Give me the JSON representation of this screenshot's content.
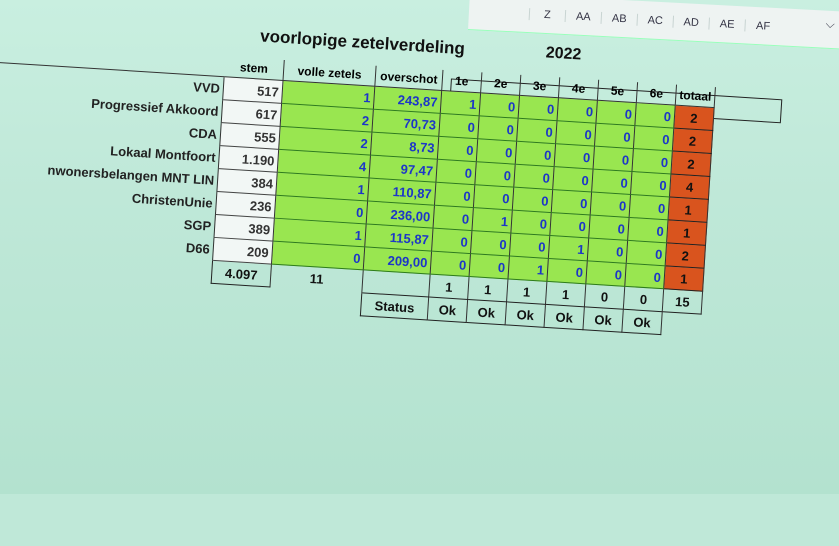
{
  "columns": [
    "Z",
    "AA",
    "AB",
    "AC",
    "AD",
    "AE",
    "AF"
  ],
  "title": "voorlopige zetelverdeling",
  "year": "2022",
  "headers": {
    "stem": "stem",
    "volle_zetels": "volle zetels",
    "overschot": "overschot",
    "rounds": [
      "1e",
      "2e",
      "3e",
      "4e",
      "5e",
      "6e"
    ],
    "totaal": "totaal"
  },
  "rows": [
    {
      "party": "VVD",
      "stem": "517",
      "volle": "1",
      "over": "243,87",
      "r": [
        "1",
        "0",
        "0",
        "0",
        "0",
        "0"
      ],
      "tot": "2"
    },
    {
      "party": "Progressief Akkoord",
      "stem": "617",
      "volle": "2",
      "over": "70,73",
      "r": [
        "0",
        "0",
        "0",
        "0",
        "0",
        "0"
      ],
      "tot": "2"
    },
    {
      "party": "CDA",
      "stem": "555",
      "volle": "2",
      "over": "8,73",
      "r": [
        "0",
        "0",
        "0",
        "0",
        "0",
        "0"
      ],
      "tot": "2"
    },
    {
      "party": "Lokaal Montfoort",
      "stem": "1.190",
      "volle": "4",
      "over": "97,47",
      "r": [
        "0",
        "0",
        "0",
        "0",
        "0",
        "0"
      ],
      "tot": "4"
    },
    {
      "party": "nwonersbelangen MNT LIN",
      "stem": "384",
      "volle": "1",
      "over": "110,87",
      "r": [
        "0",
        "0",
        "0",
        "0",
        "0",
        "0"
      ],
      "tot": "1"
    },
    {
      "party": "ChristenUnie",
      "stem": "236",
      "volle": "0",
      "over": "236,00",
      "r": [
        "0",
        "1",
        "0",
        "0",
        "0",
        "0"
      ],
      "tot": "1"
    },
    {
      "party": "SGP",
      "stem": "389",
      "volle": "1",
      "over": "115,87",
      "r": [
        "0",
        "0",
        "0",
        "1",
        "0",
        "0"
      ],
      "tot": "2"
    },
    {
      "party": "D66",
      "stem": "209",
      "volle": "0",
      "over": "209,00",
      "r": [
        "0",
        "0",
        "1",
        "0",
        "0",
        "0"
      ],
      "tot": "1"
    }
  ],
  "totals": {
    "stem": "4.097",
    "volle": "11",
    "rounds": [
      "1",
      "1",
      "1",
      "1",
      "0",
      "0"
    ],
    "totaal": "15"
  },
  "status": {
    "label": "Status",
    "values": [
      "Ok",
      "Ok",
      "Ok",
      "Ok",
      "Ok",
      "Ok"
    ]
  }
}
